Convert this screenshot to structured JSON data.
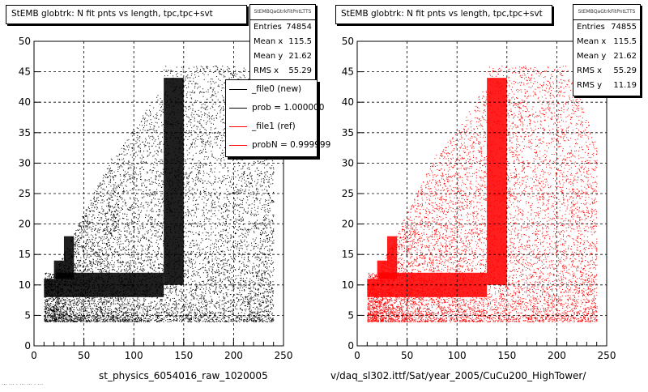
{
  "colors": {
    "file0": "#000000",
    "file1": "#ff0000",
    "grid": "#000000"
  },
  "chart_data": [
    {
      "type": "scatter",
      "title": "StEMB globtrk: N fit pnts vs length, tpc,tpc+svt",
      "xlabel": "st_physics_6054016_raw_1020005",
      "ylabel": "",
      "xlim": [
        0,
        250
      ],
      "ylim": [
        0,
        50
      ],
      "xticks": [
        "0",
        "50",
        "100",
        "150",
        "200",
        "250"
      ],
      "yticks": [
        "0",
        "5",
        "10",
        "15",
        "20",
        "25",
        "30",
        "35",
        "40",
        "45",
        "50"
      ],
      "grid": true,
      "color": "#000000",
      "stats": {
        "header": "StEMBQaGtrkFitPntLTTS",
        "rows": [
          {
            "label": "Entries",
            "value": "74854"
          },
          {
            "label": "Mean x",
            "value": "115.5"
          },
          {
            "label": "Mean y",
            "value": "21.62"
          },
          {
            "label": "RMS x",
            "value": "55.29"
          }
        ]
      },
      "legend": [
        {
          "label": "_file0 (new)",
          "color": "#000000"
        },
        {
          "label": "prob = 1.000000",
          "color": "#000000"
        },
        {
          "label": "_file1 (ref)",
          "color": "#ff0000"
        },
        {
          "label": "probN = 0.999999",
          "color": "#ff0000"
        }
      ],
      "density_regions": [
        {
          "x": [
            10,
            22
          ],
          "y": [
            8,
            11
          ]
        },
        {
          "x": [
            22,
            130
          ],
          "y": [
            8,
            12
          ]
        },
        {
          "x": [
            130,
            150
          ],
          "y": [
            10,
            44
          ]
        },
        {
          "x": [
            20,
            30
          ],
          "y": [
            11,
            14
          ]
        },
        {
          "x": [
            30,
            40
          ],
          "y": [
            11,
            18
          ]
        }
      ]
    },
    {
      "type": "scatter",
      "title": "StEMB globtrk: N fit pnts vs length, tpc,tpc+svt",
      "xlabel": "v/daq_sl302.ittf/Sat/year_2005/CuCu200_HighTower/",
      "ylabel": "",
      "xlim": [
        0,
        250
      ],
      "ylim": [
        0,
        50
      ],
      "xticks": [
        "0",
        "50",
        "100",
        "150",
        "200",
        "250"
      ],
      "yticks": [
        "0",
        "5",
        "10",
        "15",
        "20",
        "25",
        "30",
        "35",
        "40",
        "45",
        "50"
      ],
      "grid": true,
      "color": "#ff0000",
      "stats": {
        "header": "StEMBQaGtrkFitPntLTTS",
        "rows": [
          {
            "label": "Entries",
            "value": "74855"
          },
          {
            "label": "Mean x",
            "value": "115.5"
          },
          {
            "label": "Mean y",
            "value": "21.62"
          },
          {
            "label": "RMS x",
            "value": "55.29"
          },
          {
            "label": "RMS y",
            "value": "11.19"
          }
        ]
      },
      "density_regions": [
        {
          "x": [
            10,
            22
          ],
          "y": [
            8,
            11
          ]
        },
        {
          "x": [
            22,
            130
          ],
          "y": [
            8,
            12
          ]
        },
        {
          "x": [
            130,
            150
          ],
          "y": [
            10,
            44
          ]
        },
        {
          "x": [
            20,
            30
          ],
          "y": [
            11,
            14
          ]
        },
        {
          "x": [
            30,
            40
          ],
          "y": [
            11,
            18
          ]
        }
      ]
    }
  ],
  "footnote": "... ... . ... ... . ..."
}
